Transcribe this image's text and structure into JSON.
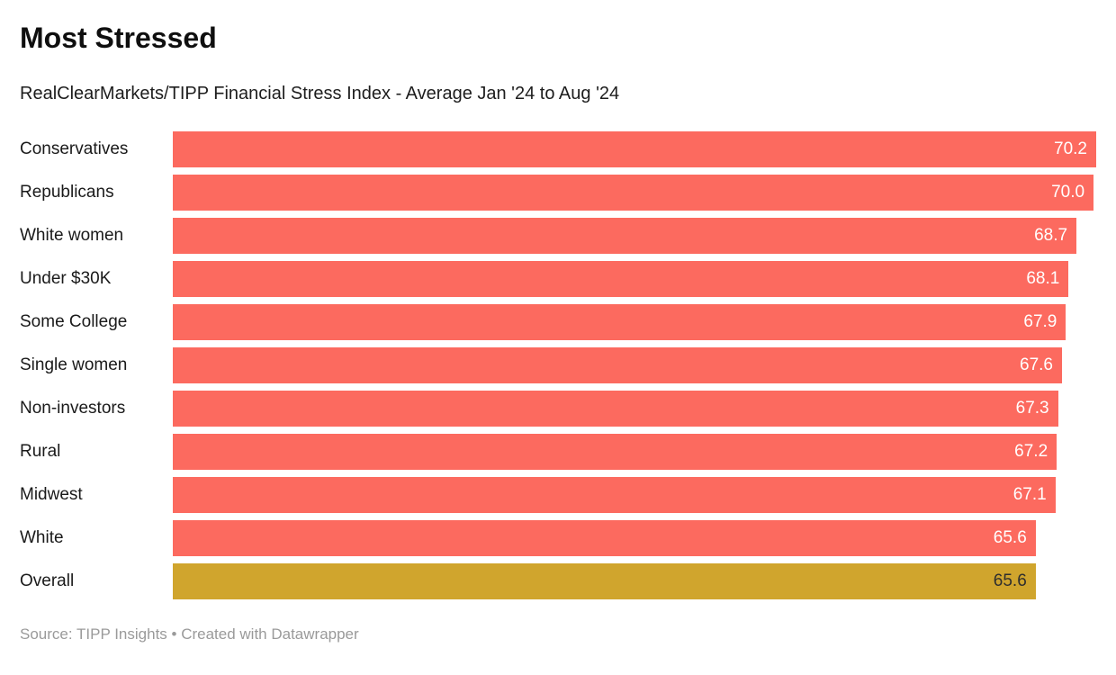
{
  "chart_data": {
    "type": "bar",
    "orientation": "horizontal",
    "title": "Most Stressed",
    "subtitle": "RealClearMarkets/TIPP Financial Stress Index - Average Jan '24 to Aug '24",
    "categories": [
      "Conservatives",
      "Republicans",
      "White women",
      "Under $30K",
      "Some College",
      "Single women",
      "Non-investors",
      "Rural",
      "Midwest",
      "White",
      "Overall"
    ],
    "values": [
      70.2,
      70.0,
      68.7,
      68.1,
      67.9,
      67.6,
      67.3,
      67.2,
      67.1,
      65.6,
      65.6
    ],
    "bar_colors": [
      "#fc6a5f",
      "#fc6a5f",
      "#fc6a5f",
      "#fc6a5f",
      "#fc6a5f",
      "#fc6a5f",
      "#fc6a5f",
      "#fc6a5f",
      "#fc6a5f",
      "#fc6a5f",
      "#d0a52d"
    ],
    "value_label_colors": [
      "#ffffff",
      "#ffffff",
      "#ffffff",
      "#ffffff",
      "#ffffff",
      "#ffffff",
      "#ffffff",
      "#ffffff",
      "#ffffff",
      "#ffffff",
      "#2e2e2e"
    ],
    "highlighted_category": "Overall",
    "xlim": [
      0,
      70.2
    ],
    "value_labels_inside": true,
    "value_format_decimals": 1,
    "grid": false,
    "legend": false,
    "source_note": "Source: TIPP Insights • Created with Datawrapper"
  },
  "colors": {
    "bar_red": "#fc6a5f",
    "bar_gold": "#d0a52d",
    "title_text": "#0f0f0f",
    "label_text": "#1a1a1a",
    "footer_text": "#9a9a9a"
  }
}
